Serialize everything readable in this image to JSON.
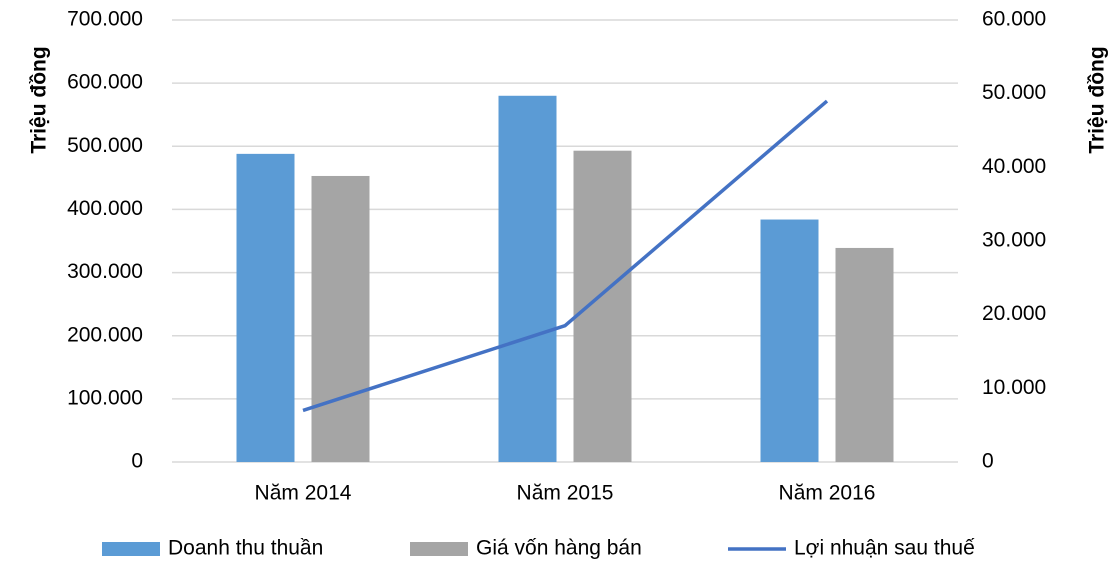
{
  "chart_data": {
    "type": "bar",
    "categories": [
      "Năm 2014",
      "Năm 2015",
      "Năm 2016"
    ],
    "ylabel": "Triệu đồng",
    "y2label": "Triệu đồng",
    "series": [
      {
        "name": "Doanh thu thuần",
        "color": "#5b9bd5",
        "type": "bar",
        "values": [
          488000,
          580000,
          384000
        ]
      },
      {
        "name": "Giá vốn hàng bán",
        "color": "#a5a5a5",
        "type": "bar",
        "values": [
          453000,
          493000,
          339000
        ]
      },
      {
        "name": "Lợi nhuận sau thuế",
        "color": "#4472c4",
        "type": "line",
        "axis": "y2",
        "values": [
          7000,
          18500,
          49000
        ]
      }
    ],
    "ylim": [
      0,
      700000
    ],
    "yticks": [
      0,
      {
        "value": 100000,
        "label": "100.000"
      },
      {
        "value": 200000,
        "label": "200.000"
      },
      {
        "value": 300000,
        "label": "300.000"
      },
      {
        "value": 400000,
        "label": "400.000"
      },
      {
        "value": 500000,
        "label": "500.000"
      },
      {
        "value": 600000,
        "label": "600.000"
      },
      {
        "value": 700000,
        "label": "700.000"
      }
    ],
    "y2lim": [
      0,
      60000
    ],
    "y2ticks": [
      0,
      {
        "value": 10000,
        "label": "10.000"
      },
      {
        "value": 20000,
        "label": "20.000"
      },
      {
        "value": 30000,
        "label": "30.000"
      },
      {
        "value": 40000,
        "label": "40.000"
      },
      {
        "value": 50000,
        "label": "50.000"
      },
      {
        "value": 60000,
        "label": "60.000"
      }
    ],
    "grid": true,
    "legend": "bottom"
  }
}
